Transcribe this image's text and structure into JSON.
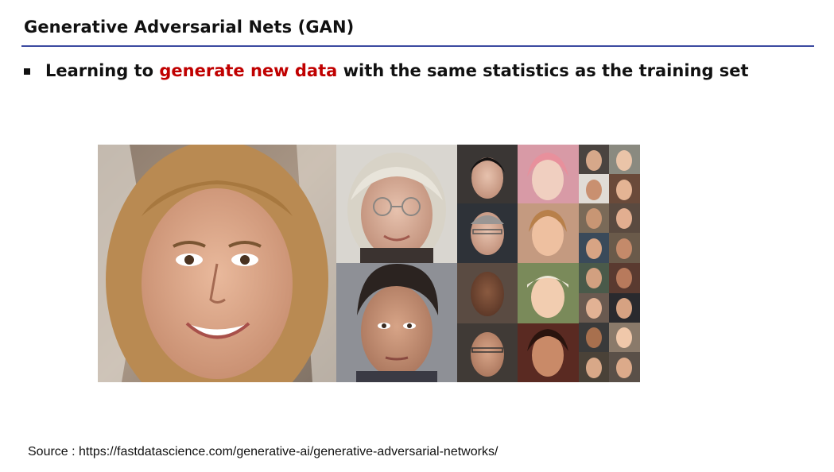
{
  "slide": {
    "title": "Generative Adversarial Nets (GAN)",
    "accent_rule_color": "#3b4aa0",
    "bullet": {
      "prefix": "Learning to ",
      "highlight": "generate new data",
      "suffix": " with the same statistics as the training set",
      "highlight_color": "#c00000"
    },
    "figure": {
      "description_icon": "face-collage-image"
    },
    "source": "Source : https://fastdatascience.com/generative-ai/generative-adversarial-networks/"
  }
}
